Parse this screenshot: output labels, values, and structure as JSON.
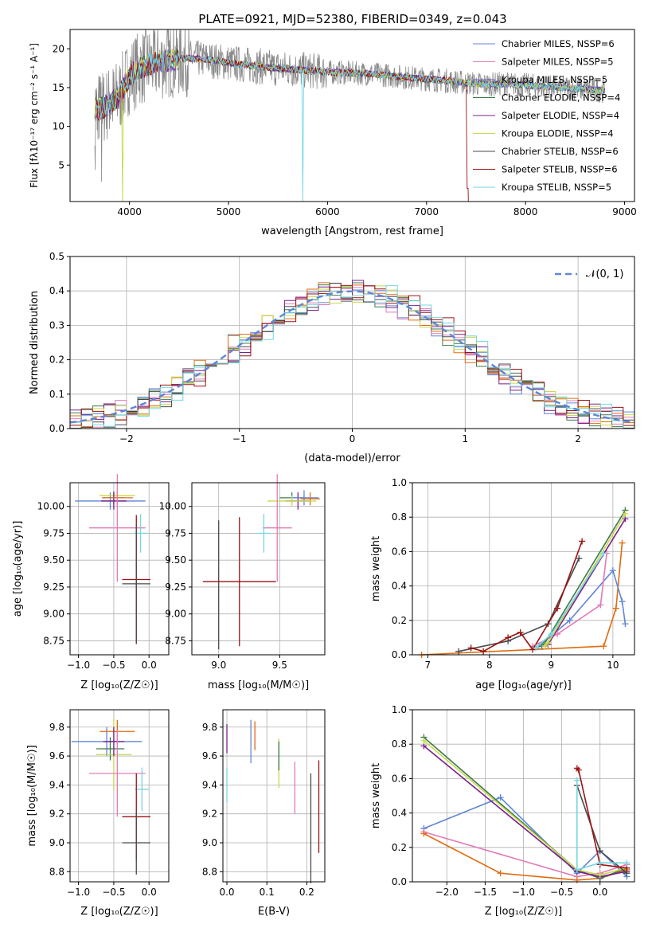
{
  "colors": {
    "c1": "#5f86d6",
    "c2": "#e37bb6",
    "c3": "#6b63c5",
    "c4": "#3c7a4a",
    "c5": "#7a1f8a",
    "c6": "#c9d84d",
    "c7": "#4a4a4a",
    "c8": "#9b1212",
    "c9": "#76d6e0",
    "orange": "#e06c10",
    "green": "#6da84a",
    "grid": "#b0b0b0",
    "gauss": "#5f86d6"
  },
  "spectrum": {
    "title": "PLATE=0921, MJD=52380, FIBERID=0349, z=0.043",
    "xlabel": "wavelength [Angstrom, rest frame]",
    "ylabel": "Flux [fλ10⁻¹⁷ erg cm⁻² s⁻¹ A⁻¹]",
    "xlim": [
      3400,
      9100
    ],
    "ylim": [
      0.3,
      22.5
    ],
    "xticks": [
      "4000",
      "5000",
      "6000",
      "7000",
      "8000",
      "9000"
    ],
    "yticks": [
      "5",
      "10",
      "15",
      "20"
    ],
    "legend": [
      {
        "label": "Chabrier MILES, NSSP=6",
        "color": "#5f86d6"
      },
      {
        "label": "Salpeter MILES, NSSP=5",
        "color": "#e37bb6"
      },
      {
        "label": "Kroupa MILES, NSSP=5",
        "color": "#6b63c5"
      },
      {
        "label": "Chabrier ELODIE, NSSP=4",
        "color": "#3c7a4a"
      },
      {
        "label": "Salpeter ELODIE, NSSP=4",
        "color": "#7a1f8a"
      },
      {
        "label": "Kroupa ELODIE, NSSP=4",
        "color": "#c9d84d"
      },
      {
        "label": "Chabrier STELIB, NSSP=6",
        "color": "#4a4a4a"
      },
      {
        "label": "Salpeter STELIB, NSSP=6",
        "color": "#9b1212"
      },
      {
        "label": "Kroupa STELIB, NSSP=5",
        "color": "#76d6e0"
      }
    ]
  },
  "chart_data": [
    {
      "type": "line",
      "title": "PLATE=0921, MJD=52380, FIBERID=0349, z=0.043",
      "xlabel": "wavelength [Angstrom, rest frame]",
      "ylabel": "Flux [fλ10⁻¹⁷ erg cm⁻² s⁻¹ A⁻¹]",
      "xlim": [
        3400,
        9100
      ],
      "ylim": [
        0.3,
        22.5
      ],
      "continuum": {
        "x": [
          3650,
          3700,
          3800,
          3900,
          4000,
          4100,
          4200,
          4400,
          4600,
          4800,
          5000,
          5200,
          5400,
          5600,
          5800,
          6000,
          6200,
          6400,
          6600,
          6800,
          7000,
          7200,
          7400,
          7600,
          7800,
          8000,
          8200,
          8400,
          8600,
          8800
        ],
        "y": [
          12.5,
          12.2,
          13.0,
          14.0,
          16.5,
          17.5,
          18.0,
          18.5,
          18.8,
          18.6,
          18.2,
          17.9,
          17.6,
          17.4,
          17.2,
          17.0,
          16.9,
          16.8,
          16.6,
          16.3,
          16.1,
          15.9,
          15.6,
          15.4,
          15.5,
          15.3,
          15.1,
          15.0,
          14.8,
          14.6
        ]
      },
      "series_names": [
        "Chabrier MILES, NSSP=6",
        "Salpeter MILES, NSSP=5",
        "Kroupa MILES, NSSP=5",
        "Chabrier ELODIE, NSSP=4",
        "Salpeter ELODIE, NSSP=4",
        "Kroupa ELODIE, NSSP=4",
        "Chabrier STELIB, NSSP=6",
        "Salpeter STELIB, NSSP=6",
        "Kroupa STELIB, NSSP=5"
      ]
    },
    {
      "type": "histogram",
      "xlabel": "(data-model)/error",
      "ylabel": "Normed distribution",
      "xlim": [
        -2.5,
        2.5
      ],
      "ylim": [
        0,
        0.5
      ],
      "gaussian_label": "𝒩(0, 1)",
      "bin_width": 0.1
    },
    {
      "type": "errorbar",
      "xlabel": "Z [log₁₀(Z/Z☉)]",
      "ylabel": "age  [log₁₀(age/yr)]",
      "xlim": [
        -1.12,
        0.28
      ],
      "ylim": [
        8.62,
        10.22
      ],
      "points": [
        {
          "x": -0.55,
          "y": 10.05,
          "xe": 0.5,
          "ye": 0.08,
          "c": "#5f86d6"
        },
        {
          "x": -0.5,
          "y": 10.08,
          "xe": 0.15,
          "ye": 0.06,
          "c": "#3c7a4a"
        },
        {
          "x": -0.45,
          "y": 10.1,
          "xe": 0.25,
          "ye": 0.05,
          "c": "#c9d84d"
        },
        {
          "x": -0.5,
          "y": 10.05,
          "xe": 0.18,
          "ye": 0.08,
          "c": "#7a1f8a"
        },
        {
          "x": -0.45,
          "y": 10.08,
          "xe": 0.22,
          "ye": 0.07,
          "c": "#e06c10"
        },
        {
          "x": -0.45,
          "y": 9.8,
          "xe": 0.4,
          "ye": 0.5,
          "c": "#e37bb6"
        },
        {
          "x": -0.12,
          "y": 9.75,
          "xe": 0.1,
          "ye": 0.18,
          "c": "#76d6e0"
        },
        {
          "x": -0.18,
          "y": 9.32,
          "xe": 0.2,
          "ye": 0.6,
          "c": "#9b1212"
        },
        {
          "x": -0.18,
          "y": 9.28,
          "xe": 0.2,
          "ye": 0.55,
          "c": "#4a4a4a"
        }
      ]
    },
    {
      "type": "errorbar",
      "xlabel": "mass [log₁₀(M/M☉)]",
      "xlim": [
        8.78,
        9.87
      ],
      "ylim": [
        8.62,
        10.22
      ],
      "points": [
        {
          "x": 9.0,
          "y": 9.27,
          "xe": 0.0,
          "ye": 0.6,
          "c": "#4a4a4a"
        },
        {
          "x": 9.17,
          "y": 9.3,
          "xe": 0.3,
          "ye": 0.6,
          "c": "#9b1212"
        },
        {
          "x": 9.6,
          "y": 10.08,
          "xe": 0.1,
          "ye": 0.05,
          "c": "#3c7a4a"
        },
        {
          "x": 9.65,
          "y": 10.05,
          "xe": 0.1,
          "ye": 0.08,
          "c": "#7a1f8a"
        },
        {
          "x": 9.7,
          "y": 10.08,
          "xe": 0.12,
          "ye": 0.07,
          "c": "#5f86d6"
        },
        {
          "x": 9.75,
          "y": 10.07,
          "xe": 0.08,
          "ye": 0.06,
          "c": "#e06c10"
        },
        {
          "x": 9.6,
          "y": 10.05,
          "xe": 0.2,
          "ye": 0.05,
          "c": "#c9d84d"
        },
        {
          "x": 9.48,
          "y": 9.8,
          "xe": 0.12,
          "ye": 0.5,
          "c": "#e37bb6"
        },
        {
          "x": 9.37,
          "y": 9.75,
          "xe": 0.05,
          "ye": 0.18,
          "c": "#76d6e0"
        }
      ]
    },
    {
      "type": "line",
      "xlabel": "age  [log₁₀(age/yr)]",
      "ylabel": "mass weight",
      "xlim": [
        6.75,
        10.35
      ],
      "ylim": [
        0,
        1
      ],
      "series": [
        {
          "c": "#e06c10",
          "x": [
            6.9,
            9.85,
            10.05,
            10.15
          ],
          "y": [
            0.0,
            0.05,
            0.27,
            0.65
          ]
        },
        {
          "c": "#5f86d6",
          "x": [
            8.8,
            9.3,
            10.0,
            10.15,
            10.2
          ],
          "y": [
            0.05,
            0.2,
            0.49,
            0.31,
            0.18
          ]
        },
        {
          "c": "#e37bb6",
          "x": [
            8.7,
            9.1,
            9.8,
            9.9
          ],
          "y": [
            0.05,
            0.12,
            0.29,
            0.59
          ]
        },
        {
          "c": "#3c7a4a",
          "x": [
            8.85,
            8.9,
            10.2
          ],
          "y": [
            0.05,
            0.07,
            0.84
          ]
        },
        {
          "c": "#7a1f8a",
          "x": [
            8.9,
            8.95,
            10.2
          ],
          "y": [
            0.05,
            0.06,
            0.79
          ]
        },
        {
          "c": "#c9d84d",
          "x": [
            8.9,
            8.95,
            10.2
          ],
          "y": [
            0.05,
            0.07,
            0.82
          ]
        },
        {
          "c": "#4a4a4a",
          "x": [
            7.5,
            8.3,
            8.95,
            9.45
          ],
          "y": [
            0.02,
            0.08,
            0.18,
            0.56
          ]
        },
        {
          "c": "#9b1212",
          "x": [
            7.7,
            7.9,
            8.3,
            8.5,
            8.7,
            9.1,
            9.5
          ],
          "y": [
            0.04,
            0.02,
            0.1,
            0.13,
            0.03,
            0.27,
            0.66
          ]
        },
        {
          "c": "#76d6e0",
          "x": [
            8.75,
            9.0,
            9.85
          ],
          "y": [
            0.04,
            0.12,
            0.59
          ]
        }
      ]
    },
    {
      "type": "errorbar",
      "xlabel": "Z [log₁₀(Z/Z☉)]",
      "ylabel": "mass [log₁₀(M/M☉)]",
      "xlim": [
        -1.12,
        0.28
      ],
      "ylim": [
        8.73,
        9.92
      ],
      "points": [
        {
          "x": -0.6,
          "y": 9.7,
          "xe": 0.5,
          "ye": 0.1,
          "c": "#5f86d6"
        },
        {
          "x": -0.55,
          "y": 9.65,
          "xe": 0.2,
          "ye": 0.08,
          "c": "#3c7a4a"
        },
        {
          "x": -0.5,
          "y": 9.61,
          "xe": 0.25,
          "ye": 0.25,
          "c": "#c9d84d"
        },
        {
          "x": -0.45,
          "y": 9.77,
          "xe": 0.25,
          "ye": 0.08,
          "c": "#e06c10"
        },
        {
          "x": -0.5,
          "y": 9.7,
          "xe": 0.15,
          "ye": 0.1,
          "c": "#7a1f8a"
        },
        {
          "x": -0.45,
          "y": 9.48,
          "xe": 0.4,
          "ye": 0.3,
          "c": "#e37bb6"
        },
        {
          "x": -0.1,
          "y": 9.37,
          "xe": 0.1,
          "ye": 0.15,
          "c": "#76d6e0"
        },
        {
          "x": -0.18,
          "y": 9.18,
          "xe": 0.2,
          "ye": 0.3,
          "c": "#9b1212"
        },
        {
          "x": -0.18,
          "y": 9.0,
          "xe": 0.2,
          "ye": 0.22,
          "c": "#4a4a4a"
        }
      ]
    },
    {
      "type": "errorbar",
      "xlabel": "E(B-V)",
      "xlim": [
        -0.01,
        0.245
      ],
      "ylim": [
        8.73,
        9.92
      ],
      "points": [
        {
          "x": 0.0,
          "y": 9.72,
          "ye": 0.1,
          "c": "#7a1f8a"
        },
        {
          "x": 0.0,
          "y": 9.4,
          "ye": 0.12,
          "c": "#76d6e0"
        },
        {
          "x": 0.06,
          "y": 9.7,
          "ye": 0.15,
          "c": "#5f86d6"
        },
        {
          "x": 0.07,
          "y": 9.74,
          "ye": 0.1,
          "c": "#e06c10"
        },
        {
          "x": 0.13,
          "y": 9.55,
          "ye": 0.17,
          "c": "#c9d84d"
        },
        {
          "x": 0.13,
          "y": 9.6,
          "ye": 0.1,
          "c": "#3c7a4a"
        },
        {
          "x": 0.17,
          "y": 9.38,
          "ye": 0.18,
          "c": "#e37bb6"
        },
        {
          "x": 0.21,
          "y": 9.1,
          "ye": 0.38,
          "c": "#4a4a4a"
        },
        {
          "x": 0.23,
          "y": 9.25,
          "ye": 0.32,
          "c": "#9b1212"
        }
      ]
    },
    {
      "type": "line",
      "xlabel": "Z [log₁₀(Z/Z☉)]",
      "ylabel": "mass weight",
      "xlim": [
        -2.45,
        0.45
      ],
      "ylim": [
        0,
        1
      ],
      "series": [
        {
          "c": "#5f86d6",
          "x": [
            -2.3,
            -1.3,
            -0.3,
            0.0,
            0.35
          ],
          "y": [
            0.31,
            0.49,
            0.05,
            0.18,
            0.03
          ]
        },
        {
          "c": "#e37bb6",
          "x": [
            -2.3,
            -0.3,
            0.0,
            0.35
          ],
          "y": [
            0.29,
            0.03,
            0.05,
            0.1
          ]
        },
        {
          "c": "#e06c10",
          "x": [
            -2.3,
            -1.3,
            -0.3,
            0.0,
            0.35
          ],
          "y": [
            0.28,
            0.05,
            0.01,
            0.02,
            0.07
          ]
        },
        {
          "c": "#3c7a4a",
          "x": [
            -2.3,
            -0.3,
            0.0,
            0.35
          ],
          "y": [
            0.84,
            0.07,
            0.02,
            0.08
          ]
        },
        {
          "c": "#7a1f8a",
          "x": [
            -2.3,
            -0.3,
            0.0,
            0.35
          ],
          "y": [
            0.79,
            0.06,
            0.03,
            0.06
          ]
        },
        {
          "c": "#c9d84d",
          "x": [
            -2.3,
            -0.3,
            0.0,
            0.35
          ],
          "y": [
            0.82,
            0.07,
            0.04,
            0.08
          ]
        },
        {
          "c": "#4a4a4a",
          "x": [
            -0.3,
            0.0,
            0.35
          ],
          "y": [
            0.56,
            0.18,
            0.05
          ]
        },
        {
          "c": "#9b1212",
          "x": [
            -0.3,
            -0.28,
            0.0,
            0.35
          ],
          "y": [
            0.66,
            0.65,
            0.1,
            0.08
          ]
        },
        {
          "c": "#76d6e0",
          "x": [
            -0.3,
            -0.3,
            0.0,
            0.35
          ],
          "y": [
            0.59,
            0.07,
            0.11,
            0.11
          ]
        }
      ]
    }
  ]
}
